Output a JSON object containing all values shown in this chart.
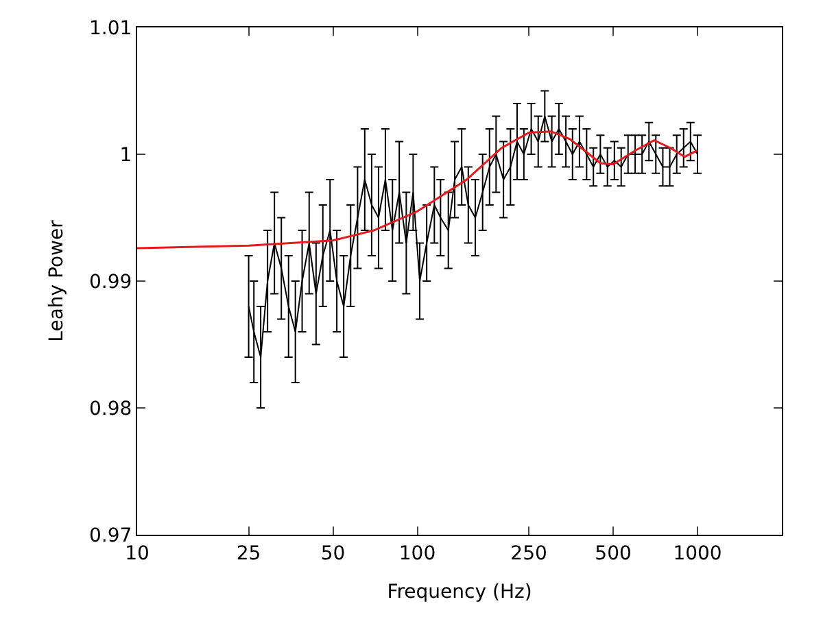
{
  "chart_data": {
    "type": "line",
    "xlabel": "Frequency (Hz)",
    "ylabel": "Leahy Power",
    "log": "x",
    "marker": "none",
    "line_style": "solid",
    "xlim": [
      10,
      2000
    ],
    "xticks": [
      10,
      25,
      50,
      100,
      250,
      500,
      1000
    ],
    "ylim": [
      0.97,
      1.01
    ],
    "yticks": [
      0.97,
      0.98,
      0.99,
      1,
      1.01
    ],
    "series": [
      {
        "color": "#000000",
        "x": [
          25,
          26.1,
          27.6,
          29.2,
          30.9,
          32.7,
          34.7,
          36.7,
          38.8,
          41.1,
          43.5,
          46.0,
          48.8,
          51.6,
          54.6,
          57.8,
          61.2,
          64.9,
          68.7,
          72.7,
          76.9,
          81.5,
          86.2,
          91.3,
          96.6,
          102,
          108,
          115,
          121,
          129,
          136,
          144,
          152,
          161,
          171,
          181,
          191,
          203,
          215,
          227,
          240,
          255,
          270,
          285,
          302,
          320,
          339,
          358,
          379,
          402,
          425,
          450,
          477,
          505,
          534,
          565,
          599,
          634,
          671,
          710,
          752,
          796,
          843,
          892,
          944,
          1000
        ],
        "values": [
          0.988,
          0.986,
          0.984,
          0.99,
          0.993,
          0.991,
          0.988,
          0.986,
          0.99,
          0.993,
          0.989,
          0.992,
          0.994,
          0.99,
          0.988,
          0.992,
          0.995,
          0.998,
          0.996,
          0.995,
          0.998,
          0.994,
          0.997,
          0.993,
          0.997,
          0.99,
          0.993,
          0.996,
          0.995,
          0.994,
          0.998,
          0.999,
          0.996,
          0.995,
          0.997,
          0.999,
          1.0,
          0.998,
          0.999,
          1.001,
          1.0,
          1.002,
          1.001,
          1.003,
          1.001,
          1.002,
          1.001,
          1.0,
          1.001,
          1.0,
          0.999,
          1.0,
          0.999,
          0.9995,
          0.999,
          1.0,
          1.0,
          1.0,
          1.001,
          1.0,
          0.999,
          0.999,
          1.0,
          1.0005,
          1.001,
          1.0
        ],
        "errors": [
          0.004,
          0.004,
          0.004,
          0.004,
          0.004,
          0.004,
          0.004,
          0.004,
          0.004,
          0.004,
          0.004,
          0.004,
          0.004,
          0.004,
          0.004,
          0.004,
          0.004,
          0.004,
          0.004,
          0.004,
          0.004,
          0.004,
          0.004,
          0.004,
          0.003,
          0.003,
          0.003,
          0.003,
          0.003,
          0.003,
          0.003,
          0.003,
          0.003,
          0.003,
          0.003,
          0.003,
          0.003,
          0.003,
          0.003,
          0.003,
          0.002,
          0.002,
          0.002,
          0.002,
          0.002,
          0.002,
          0.002,
          0.002,
          0.002,
          0.002,
          0.0015,
          0.0015,
          0.0015,
          0.0015,
          0.0015,
          0.0015,
          0.0015,
          0.0015,
          0.0015,
          0.0015,
          0.0015,
          0.0015,
          0.0015,
          0.0015,
          0.0015,
          0.0015
        ]
      },
      {
        "color": "#e41a1c",
        "x": [
          10,
          25,
          50,
          70,
          100,
          150,
          200,
          250,
          300,
          350,
          400,
          450,
          500,
          600,
          700,
          800,
          900,
          1000
        ],
        "values": [
          0.9926,
          0.9928,
          0.9932,
          0.994,
          0.9955,
          0.998,
          1.0005,
          1.0017,
          1.0018,
          1.0012,
          1.0002,
          0.9993,
          0.9992,
          1.0003,
          1.0011,
          1.0005,
          0.9998,
          1.0003
        ]
      }
    ]
  }
}
